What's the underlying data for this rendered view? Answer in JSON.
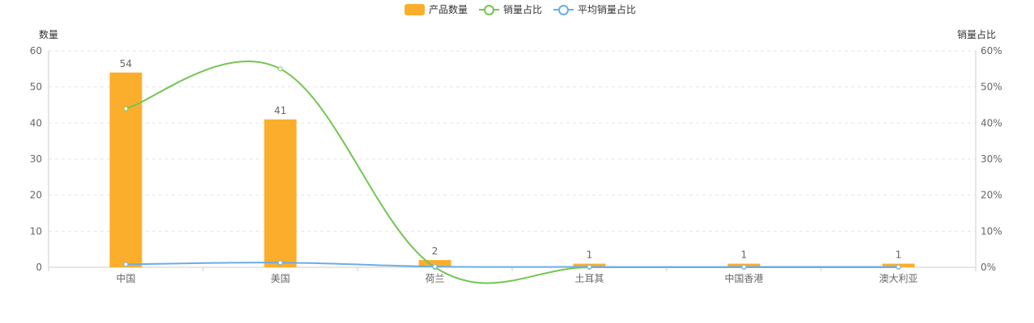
{
  "legend": {
    "bar_label": "产品数量",
    "line1_label": "销量占比",
    "line2_label": "平均销量占比"
  },
  "colors": {
    "bar": "#FBAE2C",
    "line1": "#73C650",
    "line2": "#6AADE8",
    "grid": "#E6E6E6",
    "axis": "#CCCCCC",
    "text": "#666666"
  },
  "chart_data": {
    "type": "bar",
    "categories": [
      "中国",
      "美国",
      "荷兰",
      "土耳其",
      "中国香港",
      "澳大利亚"
    ],
    "series": [
      {
        "name": "产品数量",
        "type": "bar",
        "axis": "left",
        "values": [
          54,
          41,
          2,
          1,
          1,
          1
        ]
      },
      {
        "name": "销量占比",
        "type": "line",
        "axis": "right",
        "smooth": true,
        "values": [
          44,
          55,
          0,
          0,
          0,
          0
        ]
      },
      {
        "name": "平均销量占比",
        "type": "line",
        "axis": "right",
        "smooth": true,
        "values": [
          0.8,
          1.3,
          0.2,
          0.1,
          0.1,
          0.1
        ]
      }
    ],
    "ylabel_left": "数量",
    "ylabel_right": "销量占比",
    "ylim_left": [
      0,
      60
    ],
    "ylim_right": [
      0,
      60
    ],
    "yticks_left": [
      "0",
      "10",
      "20",
      "30",
      "40",
      "50",
      "60"
    ],
    "yticks_right": [
      "0%",
      "10%",
      "20%",
      "30%",
      "40%",
      "50%",
      "60%"
    ],
    "grid": true,
    "legend_position": "top-center"
  }
}
